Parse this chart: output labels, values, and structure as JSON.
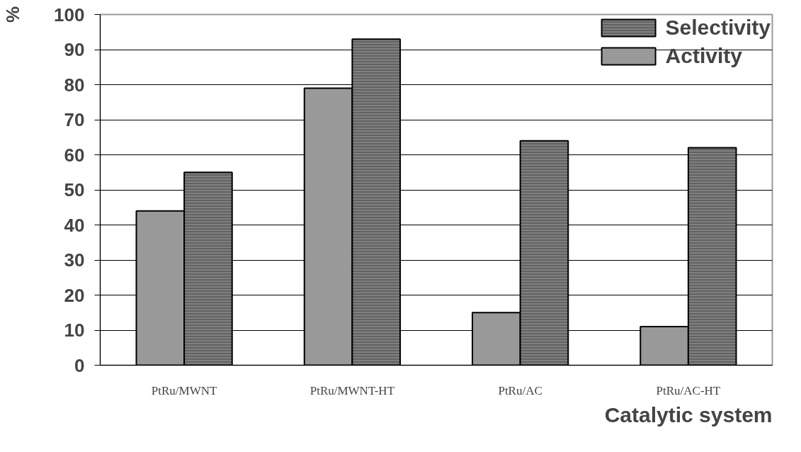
{
  "chart_data": {
    "type": "bar",
    "xlabel": "Catalytic system",
    "ylabel": "%",
    "categories": [
      "PtRu/MWNT",
      "PtRu/MWNT-HT",
      "PtRu/AC",
      "PtRu/AC-HT"
    ],
    "series": [
      {
        "name": "Activity",
        "color": "#999999",
        "values": [
          44,
          79,
          15,
          11
        ]
      },
      {
        "name": "Selectivity",
        "color": "#808080",
        "values": [
          55,
          93,
          64,
          62
        ]
      }
    ],
    "ylim": [
      0,
      100
    ],
    "yticks": [
      0,
      10,
      20,
      30,
      40,
      50,
      60,
      70,
      80,
      90,
      100
    ],
    "grid": "y",
    "legend": "top right"
  }
}
